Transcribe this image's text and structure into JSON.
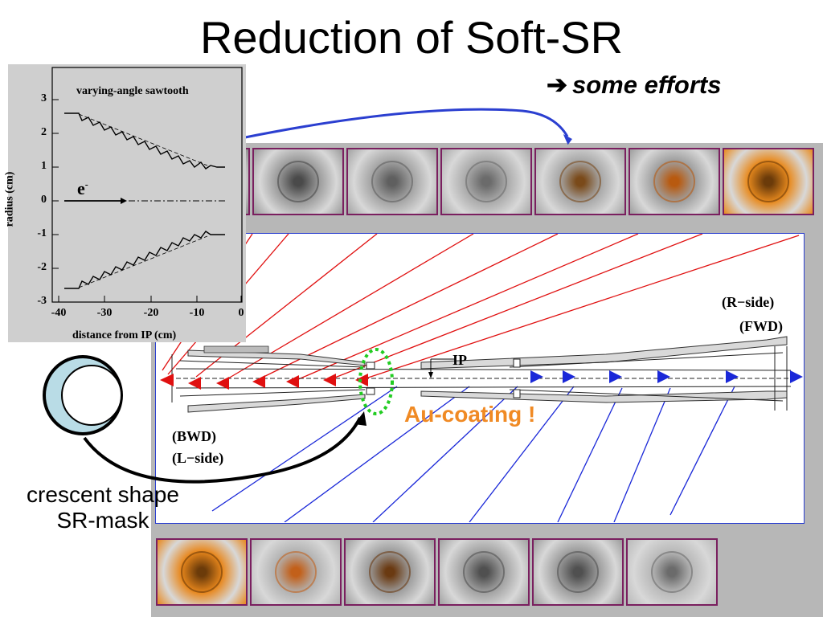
{
  "slide": {
    "title": "Reduction of Soft-SR",
    "subtitle_arrow": "➔",
    "subtitle": "some efforts",
    "au_coating": "Au-coating !",
    "crescent_caption_line1": "crescent shape",
    "crescent_caption_line2": "SR-mask"
  },
  "plot": {
    "title": "varying-angle sawtooth",
    "ylabel": "radius (cm)",
    "xlabel": "distance from IP (cm)",
    "particle": "e",
    "particle_sup": "-",
    "yticks": [
      "3",
      "2",
      "1",
      "0",
      "-1",
      "-2",
      "-3"
    ],
    "xticks": [
      "-40",
      "-30",
      "-20",
      "-10",
      "0"
    ]
  },
  "diagram": {
    "ip_label": "IP",
    "r_side": "(R−side)",
    "fwd": "(FWD)",
    "bwd": "(BWD)",
    "l_side": "(L−side)"
  },
  "photos": {
    "top_row": [
      {
        "name": "photo-top-1",
        "bg": "#8d8d8d",
        "ring": "#555555"
      },
      {
        "name": "photo-top-2",
        "bg": "#9a9a9a",
        "ring": "#4a4a4a"
      },
      {
        "name": "photo-top-3",
        "bg": "#a3a3a3",
        "ring": "#5f5f5f"
      },
      {
        "name": "photo-top-4",
        "bg": "#a9a9a9",
        "ring": "#6b6b6b"
      },
      {
        "name": "photo-top-5",
        "bg": "#a7a7a7",
        "ring": "#7a4a1a"
      },
      {
        "name": "photo-top-6",
        "bg": "#9e9e9e",
        "ring": "#b85a10"
      },
      {
        "name": "photo-top-7",
        "bg": "#e88a1e",
        "ring": "#6b3b0a"
      }
    ],
    "bottom_row": [
      {
        "name": "photo-bottom-1",
        "bg": "#e8871c",
        "ring": "#6b3b0a"
      },
      {
        "name": "photo-bottom-2",
        "bg": "#b2b2b2",
        "ring": "#c2601a"
      },
      {
        "name": "photo-bottom-3",
        "bg": "#9c9c9c",
        "ring": "#6a3a12"
      },
      {
        "name": "photo-bottom-4",
        "bg": "#a1a1a1",
        "ring": "#505050"
      },
      {
        "name": "photo-bottom-5",
        "bg": "#9b9b9b",
        "ring": "#505050"
      },
      {
        "name": "photo-bottom-6",
        "bg": "#b9b9b9",
        "ring": "#6b6b6b"
      }
    ]
  },
  "colors": {
    "title": "#000000",
    "subtitle": "#000000",
    "au_coating": "#f08a24",
    "diagram_border": "#2b3fd0",
    "red_rays": "#e01010",
    "blue_rays": "#1a28d8",
    "photo_border": "#7a1f5f",
    "green_ellipse": "#22cc22"
  }
}
